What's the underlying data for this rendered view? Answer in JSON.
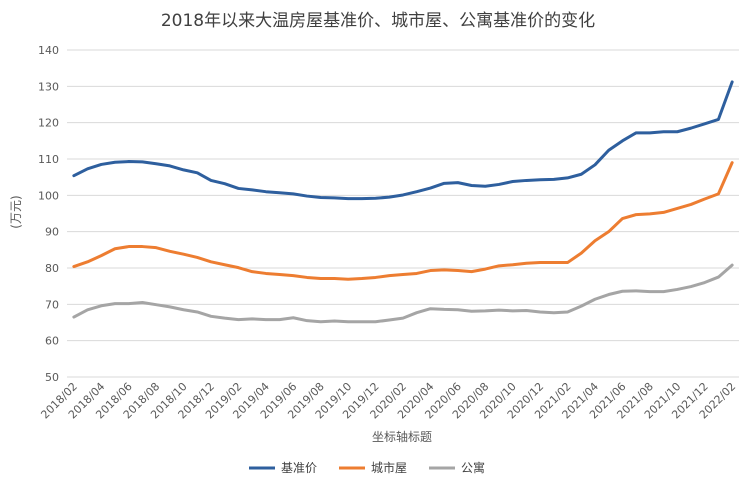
{
  "chart_data": {
    "type": "line",
    "title": "2018年以来大温房屋基准价、城市屋、公寓基准价的变化",
    "xlabel": "坐标轴标题",
    "ylabel": "(万元)",
    "ylim": [
      50,
      140
    ],
    "yticks": [
      50,
      60,
      70,
      80,
      90,
      100,
      110,
      120,
      130,
      140
    ],
    "grid": true,
    "legend_position": "bottom",
    "x_labels_shown": [
      "2018/02",
      "2018/04",
      "2018/06",
      "2018/08",
      "2018/10",
      "2018/12",
      "2019/02",
      "2019/04",
      "2019/06",
      "2019/08",
      "2019/10",
      "2019/12",
      "2020/02",
      "2020/04",
      "2020/06",
      "2020/08",
      "2020/10",
      "2020/12",
      "2021/02",
      "2021/04",
      "2021/06",
      "2021/08",
      "2021/10",
      "2021/12",
      "2022/02"
    ],
    "x": [
      "2018/02",
      "2018/03",
      "2018/04",
      "2018/05",
      "2018/06",
      "2018/07",
      "2018/08",
      "2018/09",
      "2018/10",
      "2018/11",
      "2018/12",
      "2019/01",
      "2019/02",
      "2019/03",
      "2019/04",
      "2019/05",
      "2019/06",
      "2019/07",
      "2019/08",
      "2019/09",
      "2019/10",
      "2019/11",
      "2019/12",
      "2020/01",
      "2020/02",
      "2020/03",
      "2020/04",
      "2020/05",
      "2020/06",
      "2020/07",
      "2020/08",
      "2020/09",
      "2020/10",
      "2020/11",
      "2020/12",
      "2021/01",
      "2021/02",
      "2021/03",
      "2021/04",
      "2021/05",
      "2021/06",
      "2021/07",
      "2021/08",
      "2021/09",
      "2021/10",
      "2021/11",
      "2021/12",
      "2022/01",
      "2022/02"
    ],
    "series": [
      {
        "name": "基准价",
        "color": "#2e5f9e",
        "values": [
          105.4,
          107.3,
          108.5,
          109.1,
          109.3,
          109.2,
          108.7,
          108.1,
          107.0,
          106.2,
          104.1,
          103.2,
          101.9,
          101.5,
          101.0,
          100.7,
          100.4,
          99.8,
          99.4,
          99.3,
          99.1,
          99.1,
          99.2,
          99.5,
          100.1,
          101.0,
          102.0,
          103.3,
          103.5,
          102.7,
          102.5,
          103.0,
          103.8,
          104.1,
          104.3,
          104.4,
          104.8,
          105.8,
          108.4,
          112.4,
          115.0,
          117.2,
          117.2,
          117.5,
          117.5,
          118.5,
          119.7,
          120.9,
          131.2
        ]
      },
      {
        "name": "城市屋",
        "color": "#ed7d31",
        "values": [
          80.4,
          81.7,
          83.4,
          85.3,
          85.9,
          85.9,
          85.6,
          84.6,
          83.8,
          82.9,
          81.7,
          80.9,
          80.1,
          79.0,
          78.5,
          78.2,
          77.9,
          77.4,
          77.1,
          77.1,
          76.9,
          77.1,
          77.4,
          77.9,
          78.2,
          78.5,
          79.3,
          79.5,
          79.3,
          79.0,
          79.7,
          80.6,
          80.9,
          81.3,
          81.5,
          81.5,
          81.5,
          84.1,
          87.5,
          90.0,
          93.6,
          94.7,
          94.9,
          95.3,
          96.4,
          97.5,
          99.0,
          100.4,
          109.0
        ]
      },
      {
        "name": "公寓",
        "color": "#a5a5a5",
        "values": [
          66.5,
          68.5,
          69.6,
          70.2,
          70.2,
          70.5,
          69.9,
          69.3,
          68.5,
          67.9,
          66.7,
          66.2,
          65.8,
          66.0,
          65.8,
          65.8,
          66.3,
          65.5,
          65.2,
          65.4,
          65.2,
          65.2,
          65.2,
          65.7,
          66.2,
          67.7,
          68.8,
          68.6,
          68.5,
          68.1,
          68.2,
          68.4,
          68.2,
          68.3,
          67.9,
          67.7,
          67.9,
          69.5,
          71.4,
          72.7,
          73.6,
          73.7,
          73.5,
          73.5,
          74.1,
          74.9,
          76.0,
          77.5,
          80.8
        ]
      }
    ]
  }
}
